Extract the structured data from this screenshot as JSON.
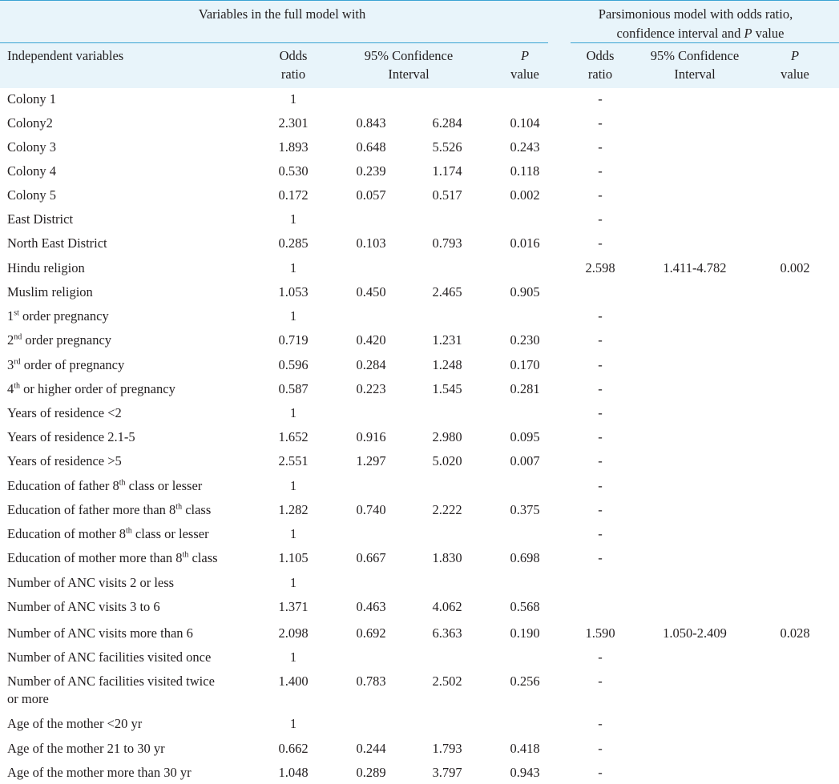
{
  "header": {
    "full_model_title": "Variables in the full model with",
    "pars_model_title_line1": "Parsimonious model with odds ratio,",
    "pars_model_title_line2_a": "confidence interval and ",
    "pars_model_title_line2_p": "P",
    "pars_model_title_line2_b": " value"
  },
  "columns": {
    "independent_variables": "Independent variables",
    "odds_1": "Odds",
    "odds_2": "ratio",
    "ci_1": "95% Confidence",
    "ci_2": "Interval",
    "p_1": "P",
    "p_2": "value",
    "p_odds_1": "Odds",
    "p_odds_2": "ratio",
    "p_ci_1": "95% Confidence",
    "p_ci_2": "Interval",
    "p_p_1": "P",
    "p_p_2": "value"
  },
  "rows": [
    {
      "label": "Colony 1",
      "odds": "1",
      "ci_low": "",
      "ci_high": "",
      "p": "",
      "p_odds": "-",
      "p_ci": "",
      "p_p": ""
    },
    {
      "label": "Colony2",
      "odds": "2.301",
      "ci_low": "0.843",
      "ci_high": "6.284",
      "p": "0.104",
      "p_odds": "-",
      "p_ci": "",
      "p_p": ""
    },
    {
      "label": "Colony 3",
      "odds": "1.893",
      "ci_low": "0.648",
      "ci_high": "5.526",
      "p": "0.243",
      "p_odds": "-",
      "p_ci": "",
      "p_p": ""
    },
    {
      "label": "Colony 4",
      "odds": "0.530",
      "ci_low": "0.239",
      "ci_high": "1.174",
      "p": "0.118",
      "p_odds": "-",
      "p_ci": "",
      "p_p": ""
    },
    {
      "label": "Colony 5",
      "odds": "0.172",
      "ci_low": "0.057",
      "ci_high": "0.517",
      "p": "0.002",
      "p_odds": "-",
      "p_ci": "",
      "p_p": ""
    },
    {
      "label": "East District",
      "odds": "1",
      "ci_low": "",
      "ci_high": "",
      "p": "",
      "p_odds": "-",
      "p_ci": "",
      "p_p": ""
    },
    {
      "label": "North East District",
      "odds": "0.285",
      "ci_low": "0.103",
      "ci_high": "0.793",
      "p": "0.016",
      "p_odds": "-",
      "p_ci": "",
      "p_p": ""
    },
    {
      "label": "Hindu religion",
      "odds": "1",
      "ci_low": "",
      "ci_high": "",
      "p": "",
      "p_odds": "2.598",
      "p_ci": "1.411-4.782",
      "p_p": "0.002"
    },
    {
      "label": "Muslim religion",
      "odds": "1.053",
      "ci_low": "0.450",
      "ci_high": "2.465",
      "p": "0.905",
      "p_odds": "",
      "p_ci": "",
      "p_p": ""
    },
    {
      "label_pre": "1",
      "label_sup": "st",
      "label": " order pregnancy",
      "odds": "1",
      "ci_low": "",
      "ci_high": "",
      "p": "",
      "p_odds": "-",
      "p_ci": "",
      "p_p": ""
    },
    {
      "label_pre": "2",
      "label_sup": "nd",
      "label": " order pregnancy",
      "odds": "0.719",
      "ci_low": "0.420",
      "ci_high": "1.231",
      "p": "0.230",
      "p_odds": "-",
      "p_ci": "",
      "p_p": ""
    },
    {
      "label_pre": "3",
      "label_sup": "rd",
      "label": " order of pregnancy",
      "odds": "0.596",
      "ci_low": "0.284",
      "ci_high": "1.248",
      "p": "0.170",
      "p_odds": "-",
      "p_ci": "",
      "p_p": ""
    },
    {
      "label_pre": "4",
      "label_sup": "th",
      "label": " or higher order of pregnancy",
      "odds": "0.587",
      "ci_low": "0.223",
      "ci_high": "1.545",
      "p": "0.281",
      "p_odds": "-",
      "p_ci": "",
      "p_p": ""
    },
    {
      "label": "Years of residence <2",
      "odds": "1",
      "ci_low": "",
      "ci_high": "",
      "p": "",
      "p_odds": "-",
      "p_ci": "",
      "p_p": ""
    },
    {
      "label": "Years of residence 2.1-5",
      "odds": "1.652",
      "ci_low": "0.916",
      "ci_high": "2.980",
      "p": "0.095",
      "p_odds": "-",
      "p_ci": "",
      "p_p": ""
    },
    {
      "label": "Years of residence >5",
      "odds": "2.551",
      "ci_low": "1.297",
      "ci_high": "5.020",
      "p": "0.007",
      "p_odds": "-",
      "p_ci": "",
      "p_p": ""
    },
    {
      "label": "Education of father 8",
      "label_sup2": "th",
      "label_post": " class or lesser",
      "odds": "1",
      "ci_low": "",
      "ci_high": "",
      "p": "",
      "p_odds": "-",
      "p_ci": "",
      "p_p": ""
    },
    {
      "label": "Education of father more than 8",
      "label_sup2": "th",
      "label_post": " class",
      "odds": "1.282",
      "ci_low": "0.740",
      "ci_high": "2.222",
      "p": "0.375",
      "p_odds": "-",
      "p_ci": "",
      "p_p": ""
    },
    {
      "label": "Education of mother 8",
      "label_sup2": "th",
      "label_post": " class or lesser",
      "odds": "1",
      "ci_low": "",
      "ci_high": "",
      "p": "",
      "p_odds": "-",
      "p_ci": "",
      "p_p": ""
    },
    {
      "label": "Education of mother more than 8",
      "label_sup2": "th",
      "label_post": " class",
      "odds": "1.105",
      "ci_low": "0.667",
      "ci_high": "1.830",
      "p": "0.698",
      "p_odds": "-",
      "p_ci": "",
      "p_p": ""
    },
    {
      "label": "Number of ANC visits 2 or less",
      "odds": "1",
      "ci_low": "",
      "ci_high": "",
      "p": "",
      "p_odds": "",
      "p_ci": "",
      "p_p": ""
    },
    {
      "label": "Number of ANC visits 3 to 6",
      "odds": "1.371",
      "ci_low": "0.463",
      "ci_high": "4.062",
      "p": "0.568",
      "p_odds": "",
      "p_ci": "",
      "p_p": ""
    },
    {
      "label": "Number of ANC visits more than 6",
      "odds": "2.098",
      "ci_low": "0.692",
      "ci_high": "6.363",
      "p": "0.190",
      "p_odds": "1.590",
      "p_ci": "1.050-2.409",
      "p_p": "0.028"
    },
    {
      "label": "Number of ANC facilities visited once",
      "odds": "1",
      "ci_low": "",
      "ci_high": "",
      "p": "",
      "p_odds": "-",
      "p_ci": "",
      "p_p": ""
    },
    {
      "label": "Number of ANC facilities visited twice",
      "label_line2": "or more",
      "odds": "1.400",
      "ci_low": "0.783",
      "ci_high": "2.502",
      "p": "0.256",
      "p_odds": "-",
      "p_ci": "",
      "p_p": ""
    },
    {
      "label": "Age of the mother <20 yr",
      "odds": "1",
      "ci_low": "",
      "ci_high": "",
      "p": "",
      "p_odds": "-",
      "p_ci": "",
      "p_p": ""
    },
    {
      "label": "Age of the mother 21 to 30 yr",
      "odds": "0.662",
      "ci_low": "0.244",
      "ci_high": "1.793",
      "p": "0.418",
      "p_odds": "-",
      "p_ci": "",
      "p_p": ""
    },
    {
      "label": "Age of the mother more than 30 yr",
      "odds": "1.048",
      "ci_low": "0.289",
      "ci_high": "3.797",
      "p": "0.943",
      "p_odds": "-",
      "p_ci": "",
      "p_p": ""
    }
  ],
  "colors": {
    "header_band": "#e8f4fa",
    "rule": "#39a3d3",
    "text": "#231f20"
  }
}
